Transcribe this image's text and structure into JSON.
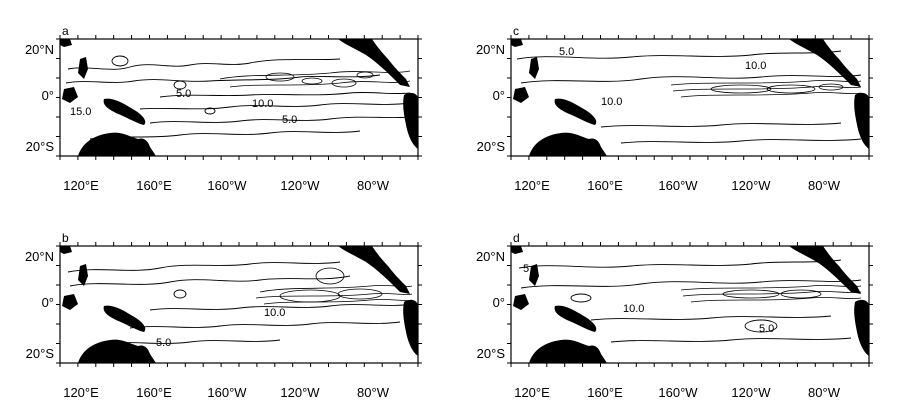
{
  "panels": [
    {
      "id": "a",
      "letter": "a",
      "contour_labels": [
        "15.0",
        "5.0",
        "10.0",
        "5.0"
      ]
    },
    {
      "id": "b",
      "letter": "b",
      "contour_labels": [
        "10.0",
        "5.0"
      ]
    },
    {
      "id": "c",
      "letter": "c",
      "contour_labels": [
        "5.0",
        "10.0",
        "10.0"
      ]
    },
    {
      "id": "d",
      "letter": "d",
      "contour_labels": [
        "5",
        "10.0",
        "5.0"
      ]
    }
  ],
  "lat_labels": [
    "20°N",
    "0°",
    "20°S"
  ],
  "lon_labels": [
    "120°E",
    "160°E",
    "160°W",
    "120°W",
    "80°W"
  ]
}
